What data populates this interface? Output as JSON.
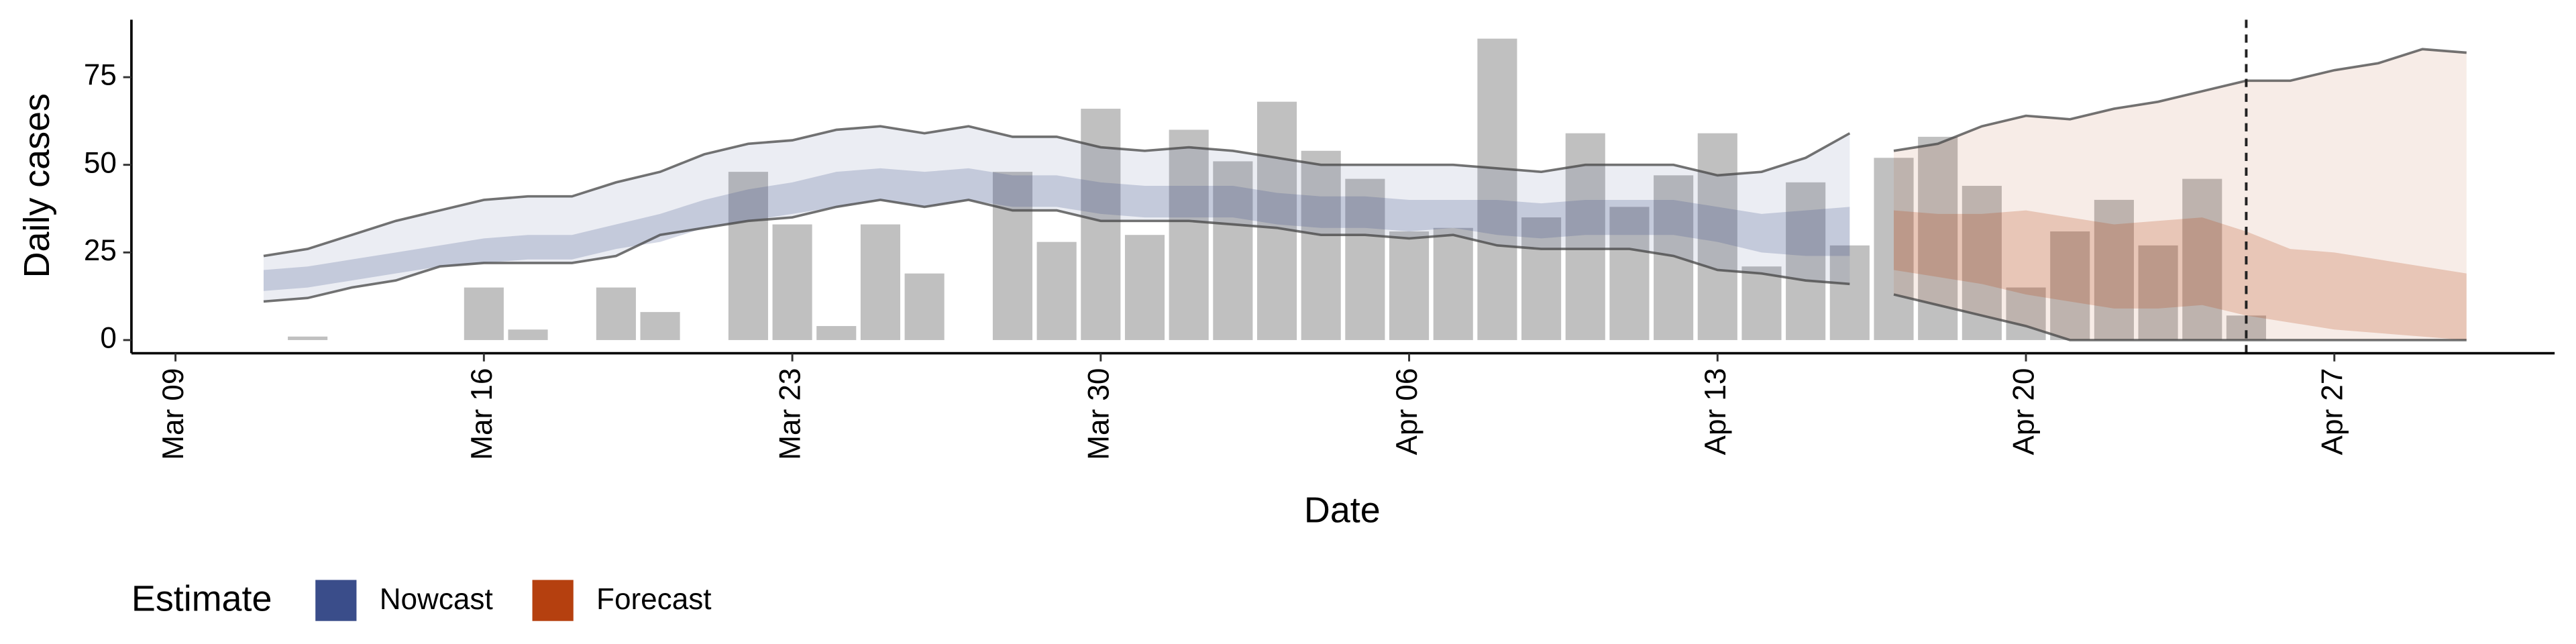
{
  "chart_data": {
    "type": "bar",
    "xlabel": "Date",
    "ylabel": "Daily cases",
    "ylim": [
      -3.75,
      91.4
    ],
    "yticks": [
      0,
      25,
      50,
      75
    ],
    "xlim": [
      "Mar 08",
      "May 02"
    ],
    "xticks": [
      "Mar 09",
      "Mar 16",
      "Mar 23",
      "Mar 30",
      "Apr 06",
      "Apr 13",
      "Apr 20",
      "Apr 27"
    ],
    "bars": {
      "color": "#bdbdbd",
      "x": [
        "Mar 12",
        "Mar 16",
        "Mar 17",
        "Mar 19",
        "Mar 20",
        "Mar 22",
        "Mar 23",
        "Mar 24",
        "Mar 25",
        "Mar 26",
        "Mar 28",
        "Mar 29",
        "Mar 30",
        "Mar 31",
        "Apr 01",
        "Apr 02",
        "Apr 03",
        "Apr 04",
        "Apr 05",
        "Apr 06",
        "Apr 07",
        "Apr 08",
        "Apr 09",
        "Apr 10",
        "Apr 11",
        "Apr 12",
        "Apr 13",
        "Apr 14",
        "Apr 15",
        "Apr 16",
        "Apr 17",
        "Apr 18",
        "Apr 19",
        "Apr 20",
        "Apr 21",
        "Apr 22",
        "Apr 23",
        "Apr 24",
        "Apr 25"
      ],
      "values": [
        1,
        15,
        3,
        15,
        8,
        48,
        33,
        4,
        33,
        19,
        48,
        28,
        66,
        30,
        60,
        51,
        68,
        54,
        46,
        31,
        32,
        86,
        35,
        59,
        38,
        47,
        59,
        21,
        45,
        27,
        52,
        58,
        44,
        15,
        31,
        40,
        27,
        46,
        7
      ]
    },
    "legend_title": "Estimate",
    "vline": "Apr 25",
    "series": [
      {
        "name": "Nowcast",
        "color": "#3a4d8a",
        "x": [
          "Mar 11",
          "Mar 12",
          "Mar 13",
          "Mar 14",
          "Mar 15",
          "Mar 16",
          "Mar 17",
          "Mar 18",
          "Mar 19",
          "Mar 20",
          "Mar 21",
          "Mar 22",
          "Mar 23",
          "Mar 24",
          "Mar 25",
          "Mar 26",
          "Mar 27",
          "Mar 28",
          "Mar 29",
          "Mar 30",
          "Mar 31",
          "Apr 01",
          "Apr 02",
          "Apr 03",
          "Apr 04",
          "Apr 05",
          "Apr 06",
          "Apr 07",
          "Apr 08",
          "Apr 09",
          "Apr 10",
          "Apr 11",
          "Apr 12",
          "Apr 13",
          "Apr 14",
          "Apr 15",
          "Apr 16"
        ],
        "outer_upper": [
          24,
          26,
          30,
          34,
          37,
          40,
          41,
          41,
          45,
          48,
          53,
          56,
          57,
          60,
          61,
          59,
          61,
          58,
          58,
          55,
          54,
          55,
          54,
          52,
          50,
          50,
          50,
          50,
          49,
          48,
          50,
          50,
          50,
          47,
          48,
          52,
          59
        ],
        "outer_lower": [
          11,
          12,
          15,
          17,
          21,
          22,
          22,
          22,
          24,
          30,
          32,
          34,
          35,
          38,
          40,
          38,
          40,
          37,
          37,
          34,
          34,
          34,
          33,
          32,
          30,
          30,
          29,
          30,
          27,
          26,
          26,
          26,
          24,
          20,
          19,
          17,
          16
        ],
        "inner_upper": [
          20,
          21,
          23,
          25,
          27,
          29,
          30,
          30,
          33,
          36,
          40,
          43,
          45,
          48,
          49,
          48,
          49,
          47,
          47,
          45,
          44,
          44,
          44,
          42,
          41,
          41,
          40,
          40,
          40,
          39,
          40,
          40,
          40,
          38,
          36,
          37,
          38
        ],
        "inner_lower": [
          14,
          15,
          17,
          19,
          21,
          22,
          23,
          23,
          26,
          28,
          32,
          34,
          36,
          38,
          40,
          38,
          40,
          38,
          38,
          36,
          35,
          35,
          35,
          33,
          32,
          32,
          31,
          32,
          30,
          29,
          30,
          30,
          30,
          28,
          25,
          24,
          24
        ]
      },
      {
        "name": "Forecast",
        "color": "#b5400f",
        "x": [
          "Apr 17",
          "Apr 18",
          "Apr 19",
          "Apr 20",
          "Apr 21",
          "Apr 22",
          "Apr 23",
          "Apr 24",
          "Apr 25",
          "Apr 26",
          "Apr 27",
          "Apr 28",
          "Apr 29",
          "Apr 30"
        ],
        "outer_upper": [
          54,
          56,
          61,
          64,
          63,
          66,
          68,
          71,
          74,
          74,
          77,
          79,
          83,
          82
        ],
        "outer_lower": [
          13,
          10,
          7,
          4,
          0,
          0,
          0,
          0,
          0,
          0,
          0,
          0,
          0,
          0
        ],
        "inner_upper": [
          37,
          36,
          36,
          37,
          35,
          33,
          34,
          35,
          31,
          26,
          25,
          23,
          21,
          19
        ],
        "inner_lower": [
          20,
          18,
          16,
          13,
          11,
          9,
          9,
          10,
          7,
          5,
          3,
          2,
          1,
          0
        ]
      }
    ]
  }
}
